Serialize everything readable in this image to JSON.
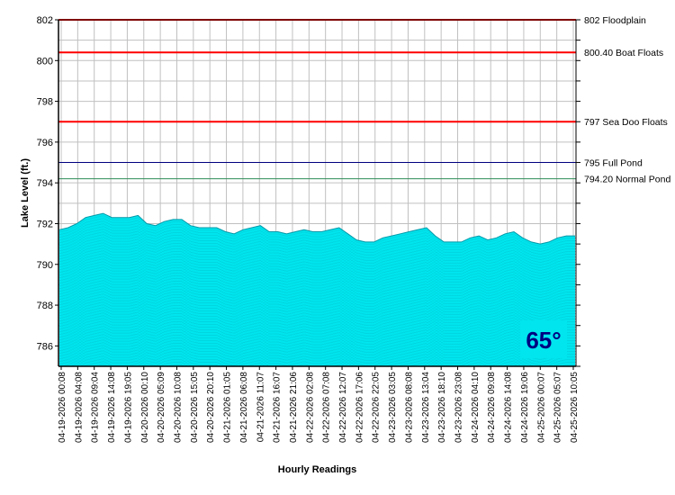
{
  "chart_data": {
    "type": "area",
    "xlabel": "Hourly Readings",
    "ylabel": "Lake Level (ft.)",
    "ylim": [
      785,
      802
    ],
    "yticks": [
      786,
      788,
      790,
      792,
      794,
      796,
      798,
      800,
      802
    ],
    "grid": true,
    "x_tick_labels": [
      "04-19-2026 00:08",
      "04-19-2026 04:08",
      "04-19-2026 09:04",
      "04-19-2026 14:08",
      "04-19-2026 19:05",
      "04-20-2026 00:10",
      "04-20-2026 05:09",
      "04-20-2026 10:08",
      "04-20-2026 15:05",
      "04-20-2026 20:10",
      "04-21-2026 01:05",
      "04-21-2026 06:08",
      "04-21-2026 11:07",
      "04-21-2026 16:07",
      "04-21-2026 21:06",
      "04-22-2026 02:08",
      "04-22-2026 07:08",
      "04-22-2026 12:07",
      "04-22-2026 17:06",
      "04-22-2026 22:05",
      "04-23-2026 03:05",
      "04-23-2026 08:08",
      "04-23-2026 13:04",
      "04-23-2026 18:10",
      "04-23-2026 23:08",
      "04-24-2026 04:10",
      "04-24-2026 09:08",
      "04-24-2026 14:08",
      "04-24-2026 19:06",
      "04-25-2026 00:07",
      "04-25-2026 05:07",
      "04-25-2026 10:05"
    ],
    "series": [
      {
        "color": "#00e5ee",
        "values": [
          791.7,
          791.8,
          792.0,
          792.3,
          792.4,
          792.5,
          792.3,
          792.3,
          792.3,
          792.4,
          792.0,
          791.9,
          792.1,
          792.2,
          792.2,
          791.9,
          791.8,
          791.8,
          791.8,
          791.6,
          791.5,
          791.7,
          791.8,
          791.9,
          791.6,
          791.6,
          791.5,
          791.6,
          791.7,
          791.6,
          791.6,
          791.7,
          791.8,
          791.5,
          791.2,
          791.1,
          791.1,
          791.3,
          791.4,
          791.5,
          791.6,
          791.7,
          791.8,
          791.4,
          791.1,
          791.1,
          791.1,
          791.3,
          791.4,
          791.2,
          791.3,
          791.5,
          791.6,
          791.3,
          791.1,
          791.0,
          791.1,
          791.3,
          791.4,
          791.4
        ]
      }
    ],
    "reference_lines": [
      {
        "value": 802,
        "label": "802 Floodplain",
        "color": "#ff0000"
      },
      {
        "value": 800.4,
        "label": "800.40 Boat Floats",
        "color": "#ff0000"
      },
      {
        "value": 797,
        "label": "797 Sea Doo Floats",
        "color": "#ff0000"
      },
      {
        "value": 795,
        "label": "795 Full Pond",
        "color": "#000080"
      },
      {
        "value": 794.2,
        "label": "794.20 Normal Pond",
        "color": "#2e8b57"
      }
    ],
    "temperature_badge": "65°"
  }
}
